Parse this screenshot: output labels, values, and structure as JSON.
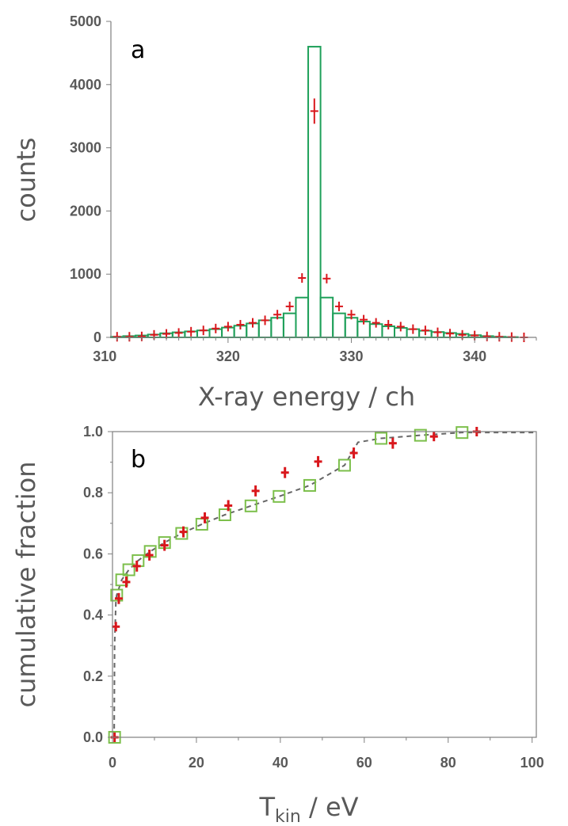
{
  "colors": {
    "histogram": "#1fa05a",
    "measured": "#d9171c",
    "open_squares": "#7cbf4b",
    "dashed": "#666666",
    "axis_text": "#595959"
  },
  "chart_data": [
    {
      "panel": "a",
      "type": "bar",
      "xlabel": "X-ray energy / ch",
      "ylabel": "counts",
      "xlim": [
        310.5,
        345
      ],
      "ylim": [
        0,
        5000
      ],
      "xticks": [
        310,
        320,
        330,
        340
      ],
      "yticks": [
        0,
        1000,
        2000,
        3000,
        4000,
        5000
      ],
      "grid": false,
      "legend": "none",
      "histogram": {
        "bin_centers": [
          311,
          312,
          313,
          314,
          315,
          316,
          317,
          318,
          319,
          320,
          321,
          322,
          323,
          324,
          325,
          326,
          327,
          328,
          329,
          330,
          331,
          332,
          333,
          334,
          335,
          336,
          337,
          338,
          339,
          340,
          341,
          342,
          343,
          344
        ],
        "values": [
          10,
          20,
          30,
          45,
          65,
          80,
          95,
          110,
          130,
          155,
          185,
          220,
          270,
          310,
          380,
          630,
          4600,
          630,
          380,
          310,
          250,
          210,
          175,
          150,
          130,
          105,
          85,
          70,
          55,
          35,
          20,
          10,
          5,
          0
        ]
      },
      "points": {
        "x": [
          311,
          312,
          313,
          314,
          315,
          316,
          317,
          318,
          319,
          320,
          321,
          322,
          323,
          324,
          325,
          326,
          327,
          328,
          329,
          330,
          331,
          332,
          333,
          334,
          335,
          336,
          337,
          338,
          339,
          340,
          341,
          342,
          343,
          344
        ],
        "y": [
          10,
          10,
          15,
          40,
          55,
          70,
          90,
          110,
          140,
          170,
          200,
          230,
          270,
          360,
          490,
          940,
          3580,
          930,
          490,
          360,
          280,
          230,
          200,
          170,
          130,
          110,
          80,
          60,
          40,
          30,
          15,
          10,
          5,
          0
        ],
        "yerr": [
          10,
          10,
          10,
          10,
          10,
          10,
          15,
          15,
          15,
          20,
          20,
          20,
          25,
          25,
          30,
          60,
          200,
          60,
          30,
          25,
          25,
          20,
          20,
          20,
          15,
          15,
          10,
          10,
          10,
          10,
          10,
          10,
          10,
          10
        ]
      }
    },
    {
      "panel": "b",
      "type": "scatter",
      "xlabel_main": "T",
      "xlabel_sub": "kin",
      "xlabel_tail": " / eV",
      "ylabel": "cumulative fraction",
      "xlim": [
        0,
        101
      ],
      "ylim": [
        0,
        1.0
      ],
      "xticks": [
        0,
        20,
        40,
        60,
        80,
        100
      ],
      "yticks": [
        "0.0",
        "0.2",
        "0.4",
        "0.6",
        "0.8",
        "1.0"
      ],
      "grid": false,
      "legend": "none",
      "squares": {
        "x": [
          0.5,
          1.0,
          2.2,
          3.9,
          6.1,
          9.0,
          12.4,
          16.5,
          21.3,
          26.8,
          33.0,
          39.7,
          47.0,
          55.3,
          64.0,
          73.4,
          83.3
        ],
        "y": [
          0.0,
          0.465,
          0.515,
          0.548,
          0.578,
          0.608,
          0.637,
          0.667,
          0.697,
          0.728,
          0.757,
          0.788,
          0.824,
          0.89,
          0.978,
          0.988,
          0.997
        ]
      },
      "crosses": {
        "x": [
          0.5,
          0.8,
          1.5,
          3.3,
          5.8,
          8.8,
          12.4,
          16.9,
          22.0,
          27.6,
          34.1,
          41.1,
          49.0,
          57.5,
          66.8,
          76.6,
          86.8
        ],
        "y": [
          0.0,
          0.362,
          0.454,
          0.508,
          0.56,
          0.596,
          0.628,
          0.672,
          0.718,
          0.758,
          0.806,
          0.866,
          0.902,
          0.93,
          0.962,
          0.984,
          1.0
        ],
        "yerr": [
          0.01,
          0.015,
          0.018,
          0.018,
          0.018,
          0.018,
          0.018,
          0.018,
          0.018,
          0.018,
          0.018,
          0.018,
          0.018,
          0.018,
          0.018,
          0.015,
          0.012
        ]
      },
      "dashed_curve": {
        "x": [
          0.4,
          0.5,
          0.8,
          1.0,
          2.2,
          3.9,
          6.1,
          9.0,
          12.4,
          16.5,
          21.3,
          26.8,
          33.0,
          39.7,
          47.0,
          55.3,
          58.5,
          64.0,
          73.4,
          83.3,
          101
        ],
        "y": [
          0.0,
          0.3,
          0.44,
          0.465,
          0.515,
          0.548,
          0.578,
          0.608,
          0.637,
          0.667,
          0.697,
          0.728,
          0.757,
          0.788,
          0.824,
          0.89,
          0.965,
          0.978,
          0.988,
          0.997,
          0.997
        ]
      }
    }
  ]
}
